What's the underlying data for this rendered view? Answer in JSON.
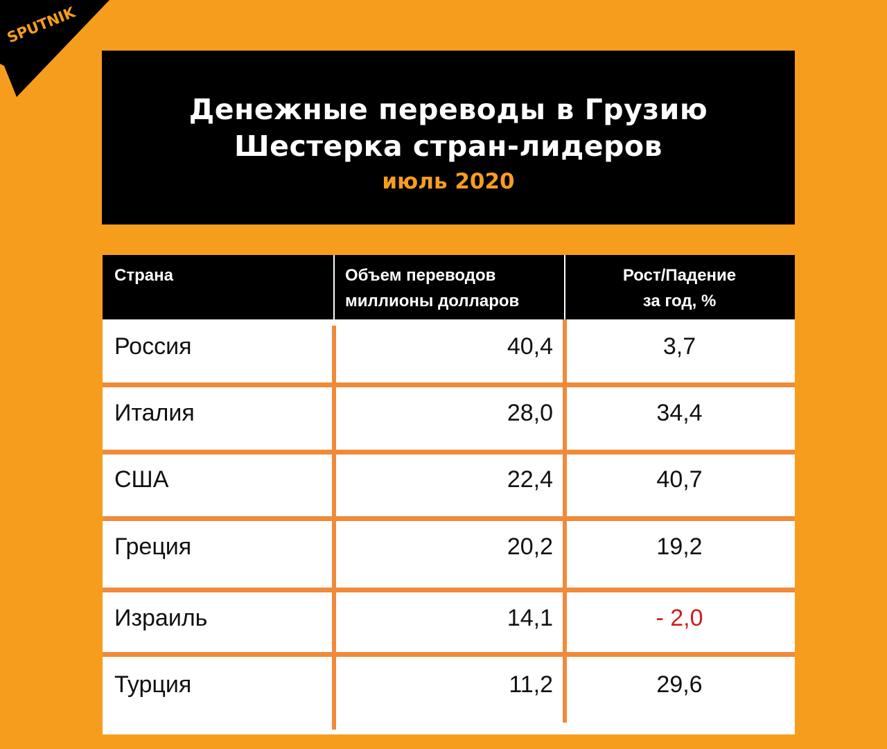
{
  "logo": {
    "text": "SPUTNIK"
  },
  "banner": {
    "title_line1": "Денежные переводы в Грузию",
    "title_line2": "Шестерка стран-лидеров",
    "period": "июль 2020"
  },
  "table": {
    "headers": {
      "country": "Страна",
      "volume_line1": "Объем переводов",
      "volume_line2": "миллионы долларов",
      "growth_line1": "Рост/Падение",
      "growth_line2": "за год, %"
    },
    "rows": [
      {
        "country": "Россия",
        "volume": "40,4",
        "growth": "3,7"
      },
      {
        "country": "Италия",
        "volume": "28,0",
        "growth": "34,4"
      },
      {
        "country": "США",
        "volume": "22,4",
        "growth": "40,7"
      },
      {
        "country": "Греция",
        "volume": "20,2",
        "growth": "19,2"
      },
      {
        "country": "Израиль",
        "volume": "14,1",
        "growth": "- 2,0"
      },
      {
        "country": "Турция",
        "volume": "11,2",
        "growth": "29,6"
      }
    ]
  },
  "colors": {
    "background": "#f79d1e",
    "banner": "#000000",
    "period_text": "#f79d1e",
    "grid_lines": "#f08a3a",
    "negative_value": "#d11b1b"
  }
}
